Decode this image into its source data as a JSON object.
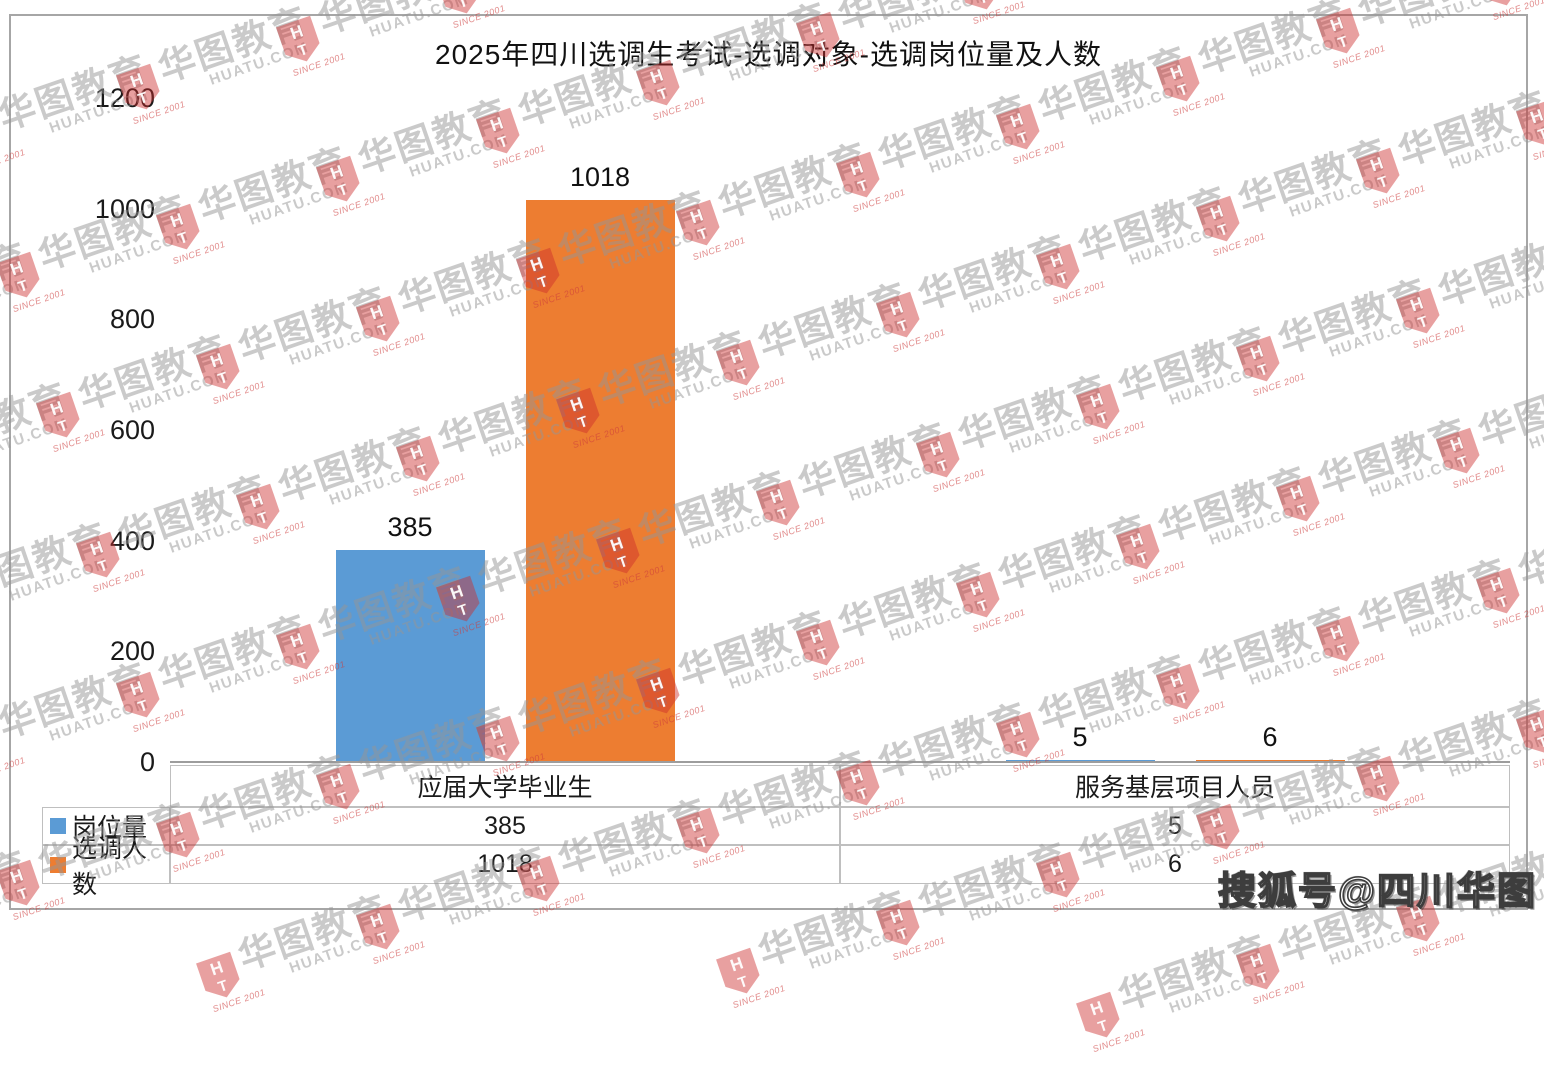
{
  "title": "2025年四川选调生考试-选调对象-选调岗位量及人数",
  "chart_data": {
    "type": "bar",
    "title": "2025年四川选调生考试-选调对象-选调岗位量及人数",
    "categories": [
      "应届大学毕业生",
      "服务基层项目人员"
    ],
    "series": [
      {
        "name": "岗位量",
        "color": "#5B9BD5",
        "values": [
          385,
          5
        ]
      },
      {
        "name": "选调人数",
        "color": "#ED7D31",
        "values": [
          1018,
          6
        ]
      }
    ],
    "data_labels": [
      [
        "385",
        "5"
      ],
      [
        "1018",
        "6"
      ]
    ],
    "ylim": [
      0,
      1200
    ],
    "yticks": [
      0,
      200,
      400,
      600,
      800,
      1000,
      1200
    ],
    "grid": false,
    "legend_position": "table-left",
    "table": {
      "header": [
        "应届大学毕业生",
        "服务基层项目人员"
      ],
      "rows": [
        {
          "label": "岗位量",
          "values": [
            "385",
            "5"
          ]
        },
        {
          "label": "选调人数",
          "values": [
            "1018",
            "6"
          ]
        }
      ]
    }
  },
  "watermark": {
    "brand_cn": "华图教育",
    "brand_url": "HUATU.COM",
    "since": "SINCE 2001",
    "icon_letters": [
      "H",
      "T"
    ],
    "icon_color": "#CD2D2D"
  },
  "footer": {
    "sohu_badge": "搜狐号@四川华图"
  },
  "colors": {
    "series1": "#5B9BD5",
    "series2": "#ED7D31",
    "frame_border": "#A6A6A6",
    "table_border": "#BFBFBF",
    "axis_line": "#9D9D9D"
  }
}
